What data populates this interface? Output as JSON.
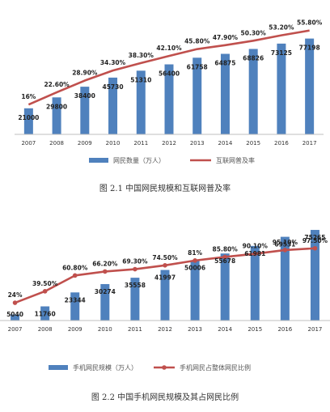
{
  "captions": {
    "fig1": "图 2.1  中国网民规模和互联网普及率",
    "fig2": "图 2.2  中国手机网民规模及其占网民比例"
  },
  "chart_data": [
    {
      "type": "bar",
      "categories": [
        "2007",
        "2008",
        "2009",
        "2010",
        "2011",
        "2012",
        "2013",
        "2014",
        "2015",
        "2016",
        "2017"
      ],
      "series": [
        {
          "name": "网民数量（万人）",
          "kind": "bar",
          "values": [
            21000,
            29800,
            38400,
            45730,
            51310,
            56400,
            61758,
            64875,
            68826,
            73125,
            77198
          ],
          "labels": [
            "21000",
            "29800",
            "38400",
            "45730",
            "51310",
            "56400",
            "61758",
            "64875",
            "68826",
            "73125",
            "77198"
          ],
          "color": "#4f81bd"
        },
        {
          "name": "互联网普及率",
          "kind": "line",
          "values": [
            16,
            22.6,
            28.9,
            34.3,
            38.3,
            42.1,
            45.8,
            47.9,
            50.3,
            53.2,
            55.8
          ],
          "labels": [
            "16%",
            "22.60%",
            "28.90%",
            "34.30%",
            "38.30%",
            "42.10%",
            "45.80%",
            "47.90%",
            "50.30%",
            "53.20%",
            "55.80%"
          ],
          "color": "#c0504d",
          "markers": false
        }
      ],
      "bar_ylim": [
        0,
        90000
      ],
      "line_ylim": [
        0,
        60
      ],
      "grid": false,
      "legend": "bottom"
    },
    {
      "type": "bar",
      "categories": [
        "2007",
        "2008",
        "2009",
        "2010",
        "2011",
        "2012",
        "2013",
        "2014",
        "2015",
        "2016",
        "2017"
      ],
      "series": [
        {
          "name": "手机网民规模（万人）",
          "kind": "bar",
          "values": [
            5040,
            11760,
            23344,
            30274,
            35558,
            41997,
            50006,
            55678,
            61981,
            69531,
            75265
          ],
          "labels": [
            "5040",
            "11760",
            "23344",
            "30274",
            "35558",
            "41997",
            "50006",
            "55678",
            "61981",
            "69531",
            "75265"
          ],
          "color": "#4f81bd"
        },
        {
          "name": "手机网民占整体网民比例",
          "kind": "line",
          "values": [
            24,
            39.5,
            60.8,
            66.2,
            69.3,
            74.5,
            81,
            85.8,
            90.1,
            95.1,
            97.5
          ],
          "labels": [
            "24%",
            "39.50%",
            "60.80%",
            "66.20%",
            "69.30%",
            "74.50%",
            "81%",
            "85.80%",
            "90.10%",
            "95.10%",
            "97.50%"
          ],
          "color": "#c0504d",
          "markers": true
        }
      ],
      "bar_ylim": [
        0,
        80000
      ],
      "line_ylim": [
        0,
        130
      ],
      "grid": false,
      "legend": "bottom"
    }
  ]
}
